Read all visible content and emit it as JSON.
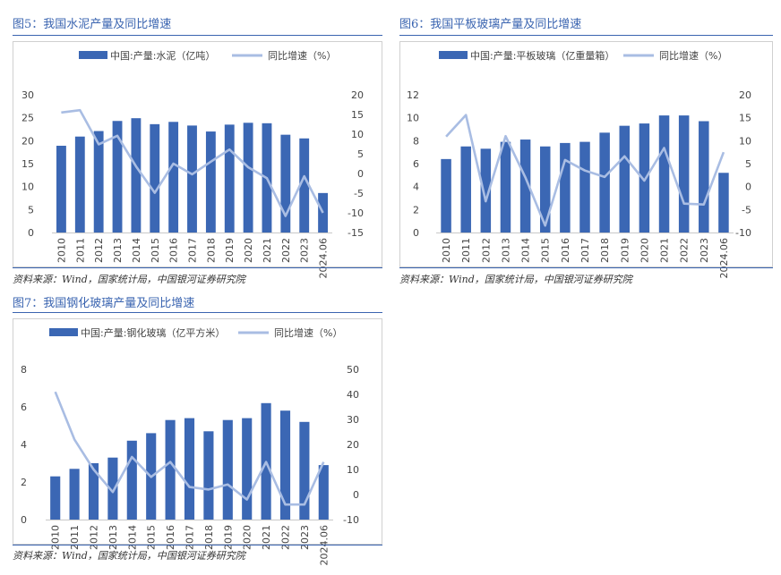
{
  "panels": [
    {
      "title": "图5：我国水泥产量及同比增速",
      "source": "资料来源：Wind，国家统计局，中国银河证券研究院"
    },
    {
      "title": "图6：我国平板玻璃产量及同比增速",
      "source": "资料来源：Wind，国家统计局，中国银河证券研究院"
    },
    {
      "title": "图7：我国钢化玻璃产量及同比增速",
      "source": "资料来源：Wind，国家统计局，中国银河证券研究院"
    }
  ],
  "colors": {
    "bar": "#3b67b4",
    "line": "#a9bde3",
    "accent": "#3a64b0"
  },
  "chart_data": [
    {
      "type": "bar",
      "categories": [
        "2010",
        "2011",
        "2012",
        "2013",
        "2014",
        "2015",
        "2016",
        "2017",
        "2018",
        "2019",
        "2020",
        "2021",
        "2022",
        "2023",
        "2024.06"
      ],
      "series": [
        {
          "name": "中国:产量:水泥（亿吨）",
          "type": "bar",
          "axis": "left",
          "values": [
            18.9,
            20.9,
            22.1,
            24.3,
            24.9,
            23.6,
            24.1,
            23.3,
            22.0,
            23.5,
            23.9,
            23.8,
            21.3,
            20.5,
            8.6
          ]
        },
        {
          "name": "同比增速（%）",
          "type": "line",
          "axis": "right",
          "values": [
            15.5,
            16.1,
            7.4,
            9.6,
            1.8,
            -4.9,
            2.5,
            -0.2,
            3.0,
            6.1,
            1.6,
            -1.2,
            -10.8,
            -0.7,
            -10.0
          ]
        }
      ],
      "ylim_left": [
        0,
        30
      ],
      "yticks_left": [
        0,
        5,
        10,
        15,
        20,
        25,
        30
      ],
      "ylim_right": [
        -15,
        20
      ],
      "yticks_right": [
        -15,
        -10,
        -5,
        0,
        5,
        10,
        15,
        20
      ],
      "legend": "top",
      "grid": false
    },
    {
      "type": "bar",
      "categories": [
        "2010",
        "2011",
        "2012",
        "2013",
        "2014",
        "2015",
        "2016",
        "2017",
        "2018",
        "2019",
        "2020",
        "2021",
        "2022",
        "2023",
        "2024.06"
      ],
      "series": [
        {
          "name": "中国:产量:平板玻璃（亿重量箱）",
          "type": "bar",
          "axis": "left",
          "values": [
            6.4,
            7.5,
            7.3,
            7.9,
            8.1,
            7.5,
            7.8,
            7.9,
            8.7,
            9.3,
            9.5,
            10.2,
            10.2,
            9.7,
            5.2
          ]
        },
        {
          "name": "同比增速（%）",
          "type": "line",
          "axis": "right",
          "values": [
            10.9,
            15.6,
            -3.2,
            11.0,
            2.0,
            -8.5,
            5.8,
            3.5,
            2.1,
            6.6,
            1.3,
            8.4,
            -3.7,
            -3.9,
            7.5
          ]
        }
      ],
      "ylim_left": [
        0,
        12
      ],
      "yticks_left": [
        0,
        2,
        4,
        6,
        8,
        10,
        12
      ],
      "ylim_right": [
        -10,
        20
      ],
      "yticks_right": [
        -10,
        -5,
        0,
        5,
        10,
        15,
        20
      ],
      "legend": "top",
      "grid": false
    },
    {
      "type": "bar",
      "categories": [
        "2010",
        "2011",
        "2012",
        "2013",
        "2014",
        "2015",
        "2016",
        "2017",
        "2018",
        "2019",
        "2020",
        "2021",
        "2022",
        "2023",
        "2024.06"
      ],
      "series": [
        {
          "name": "中国:产量:钢化玻璃（亿平方米）",
          "type": "bar",
          "axis": "left",
          "values": [
            2.3,
            2.7,
            3.0,
            3.3,
            4.2,
            4.6,
            5.3,
            5.4,
            4.7,
            5.3,
            5.4,
            6.2,
            5.8,
            5.2,
            2.9
          ]
        },
        {
          "name": "同比增速（%）",
          "type": "line",
          "axis": "right",
          "values": [
            41.0,
            22.0,
            10.0,
            1.0,
            15.0,
            7.0,
            13.0,
            3.0,
            2.0,
            4.0,
            -2.0,
            13.0,
            -4.0,
            -4.0,
            13.0
          ]
        }
      ],
      "ylim_left": [
        0,
        8
      ],
      "yticks_left": [
        0,
        2,
        4,
        6,
        8
      ],
      "ylim_right": [
        -10,
        50
      ],
      "yticks_right": [
        -10,
        0,
        10,
        20,
        30,
        40,
        50
      ],
      "legend": "top",
      "grid": false
    }
  ]
}
